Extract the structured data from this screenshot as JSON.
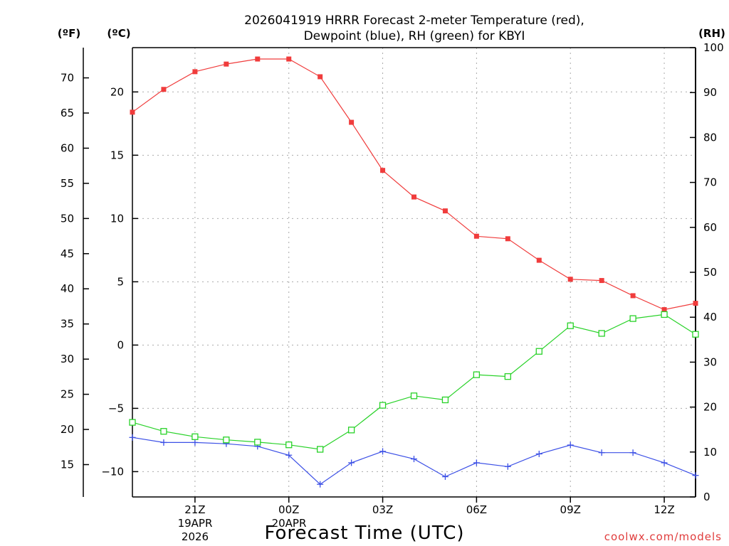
{
  "title_line1": "2026041919 HRRR Forecast 2-meter Temperature (red),",
  "title_line2": "Dewpoint (blue), RH (green) for KBYI",
  "unit_f": "(ºF)",
  "unit_c": "(ºC)",
  "unit_rh": "(RH)",
  "xlabel": "Forecast Time (UTC)",
  "credit": "coolwx.com/models",
  "date_lines": [
    "19APR",
    "2026"
  ],
  "date_lines_2": [
    "20APR"
  ],
  "colors": {
    "temperature": "#f03c3c",
    "dewpoint": "#3c50e6",
    "rh": "#28d228",
    "grid": "#aaaaaa"
  },
  "chart_data": {
    "type": "line",
    "x_unit": "hours after 2026041919 UTC",
    "x": [
      0,
      1,
      2,
      3,
      4,
      5,
      6,
      7,
      8,
      9,
      10,
      11,
      12,
      13,
      14,
      15,
      16,
      17,
      18
    ],
    "x_range": [
      0,
      18
    ],
    "x_ticks": [
      {
        "x": 2,
        "label": "21Z"
      },
      {
        "x": 5,
        "label": "00Z"
      },
      {
        "x": 8,
        "label": "03Z"
      },
      {
        "x": 11,
        "label": "06Z"
      },
      {
        "x": 14,
        "label": "09Z"
      },
      {
        "x": 17,
        "label": "12Z"
      }
    ],
    "y_left_celsius": {
      "range": [
        -12,
        23.5
      ],
      "ticks": [
        -10,
        -5,
        0,
        5,
        10,
        15,
        20
      ]
    },
    "y_left_fahrenheit": {
      "ticks": [
        15,
        20,
        25,
        30,
        35,
        40,
        45,
        50,
        55,
        60,
        65,
        70
      ]
    },
    "y_right_rh": {
      "range": [
        0,
        100
      ],
      "ticks": [
        0,
        10,
        20,
        30,
        40,
        50,
        60,
        70,
        80,
        90,
        100
      ]
    },
    "grid": true,
    "series": [
      {
        "name": "Temperature",
        "axis": "celsius",
        "marker": "filled-square",
        "values": [
          18.4,
          20.2,
          21.6,
          22.2,
          22.6,
          22.6,
          21.2,
          17.6,
          13.8,
          11.7,
          10.6,
          8.6,
          8.4,
          6.7,
          5.2,
          5.1,
          3.9,
          2.8,
          3.3
        ]
      },
      {
        "name": "Dewpoint",
        "axis": "celsius",
        "marker": "plus",
        "values": [
          -7.3,
          -7.7,
          -7.7,
          -7.8,
          -8.0,
          -8.7,
          -11.0,
          -9.3,
          -8.4,
          -9.0,
          -10.4,
          -9.3,
          -9.6,
          -8.6,
          -7.9,
          -8.5,
          -8.5,
          -9.3,
          -10.3
        ]
      },
      {
        "name": "RH",
        "axis": "rh",
        "marker": "open-square",
        "values": [
          16.6,
          14.6,
          13.4,
          12.7,
          12.2,
          11.6,
          10.6,
          14.9,
          20.4,
          22.5,
          21.6,
          27.2,
          26.8,
          32.4,
          38.1,
          36.4,
          39.7,
          40.6,
          36.2
        ]
      }
    ]
  }
}
